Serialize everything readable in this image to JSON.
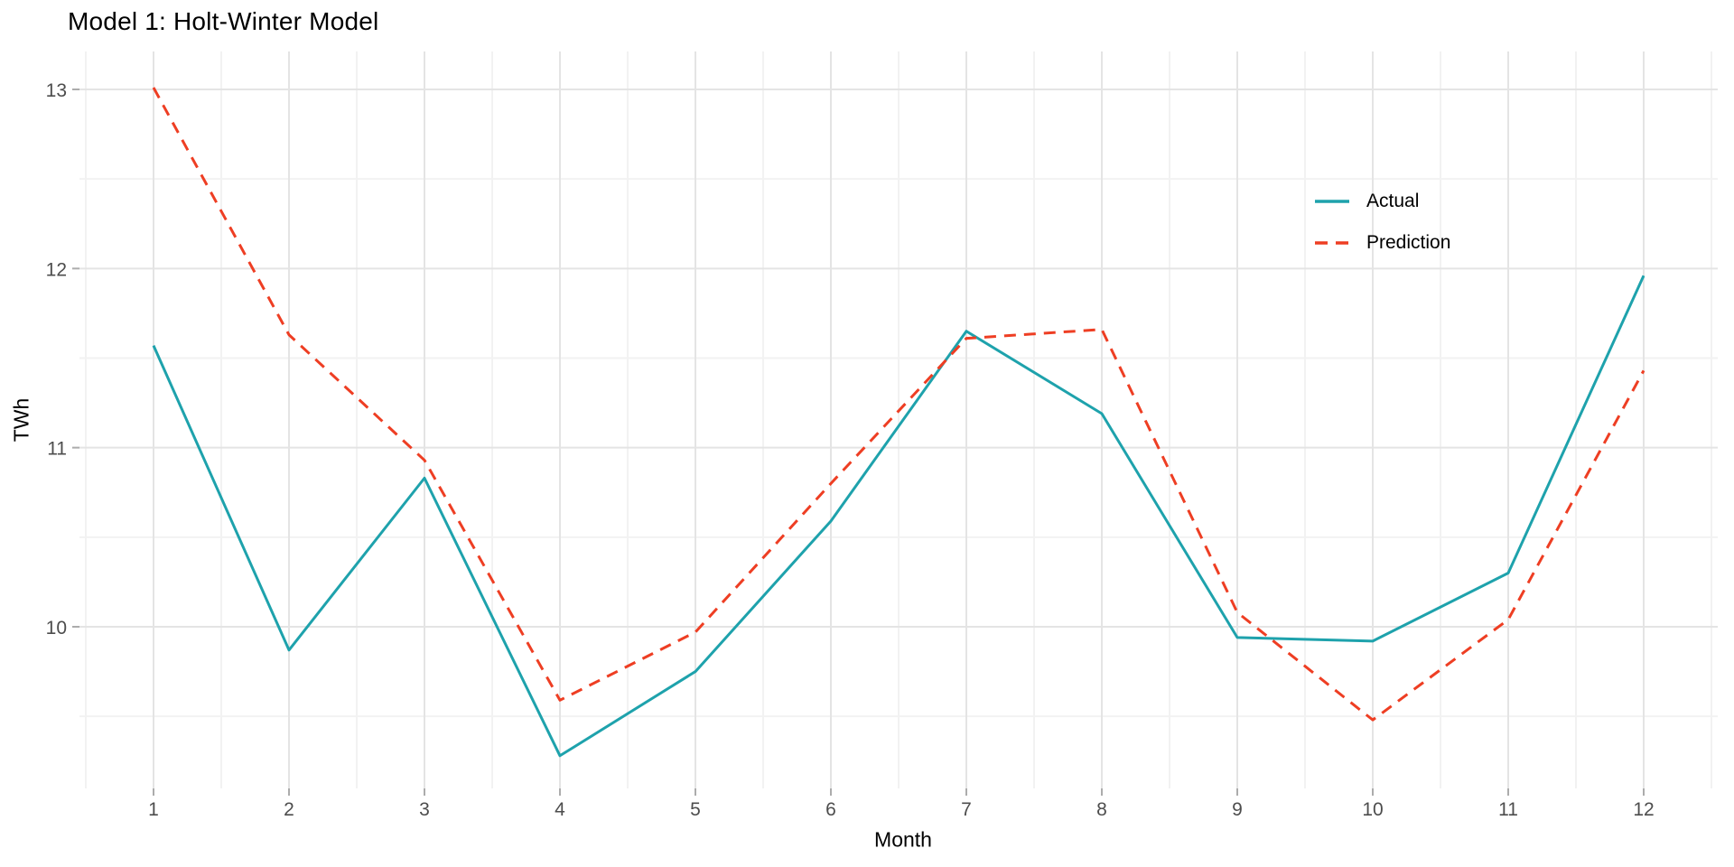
{
  "chart_data": {
    "type": "line",
    "title": "Model 1: Holt-Winter Model",
    "xlabel": "Month",
    "ylabel": "TWh",
    "x": [
      1,
      2,
      3,
      4,
      5,
      6,
      7,
      8,
      9,
      10,
      11,
      12
    ],
    "x_tick_labels": [
      "1",
      "2",
      "3",
      "4",
      "5",
      "6",
      "7",
      "8",
      "9",
      "10",
      "11",
      "12"
    ],
    "y_ticks": [
      10,
      11,
      12,
      13
    ],
    "y_tick_labels": [
      "10",
      "11",
      "12",
      "13"
    ],
    "y_minor_ticks": [
      9.5,
      10.5,
      11.5,
      12.5
    ],
    "x_minor_ticks": [
      0.5,
      1.5,
      2.5,
      3.5,
      4.5,
      5.5,
      6.5,
      7.5,
      8.5,
      9.5,
      10.5,
      11.5,
      12.5
    ],
    "xlim": [
      0.45,
      12.55
    ],
    "ylim": [
      9.09,
      13.2
    ],
    "grid": "major-and-minor",
    "legend_position": "inside-upper-right",
    "series": [
      {
        "name": "Actual",
        "style": "solid",
        "color": "#1EA2AC",
        "values": [
          11.57,
          9.87,
          10.83,
          9.28,
          9.75,
          10.59,
          11.65,
          11.19,
          9.94,
          9.92,
          10.3,
          11.96
        ]
      },
      {
        "name": "Prediction",
        "style": "dashed",
        "color": "#EE3E23",
        "values": [
          13.01,
          11.63,
          10.93,
          9.59,
          9.97,
          10.8,
          11.61,
          11.66,
          10.08,
          9.48,
          10.04,
          11.43
        ]
      }
    ],
    "palette": {
      "grid_major": "#E4E4E4",
      "grid_minor": "#F2F2F2",
      "tick_mark": "#ACACAC",
      "tick_text": "#4D4D4D",
      "title_text": "#000000"
    }
  }
}
